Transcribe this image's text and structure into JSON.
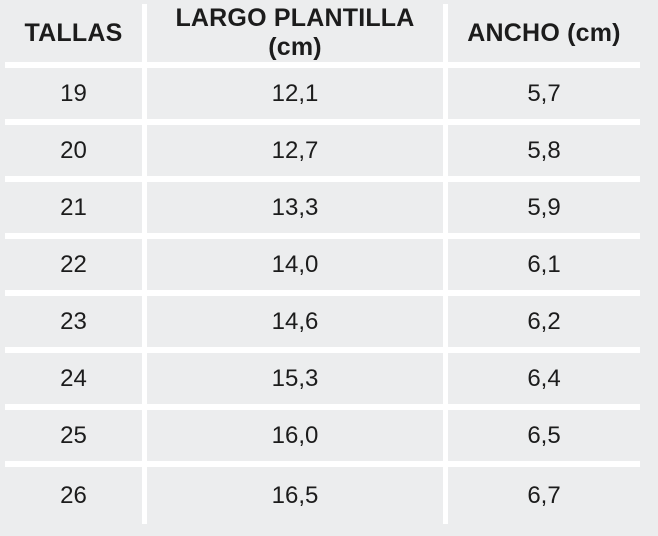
{
  "colors": {
    "background": "#ecedee",
    "divider": "#ffffff",
    "text": "#1c1c1c"
  },
  "table": {
    "headers": [
      "TALLAS",
      "LARGO PLANTILLA (cm)",
      "ANCHO (cm)"
    ],
    "rows": [
      [
        "19",
        "12,1",
        "5,7"
      ],
      [
        "20",
        "12,7",
        "5,8"
      ],
      [
        "21",
        "13,3",
        "5,9"
      ],
      [
        "22",
        "14,0",
        "6,1"
      ],
      [
        "23",
        "14,6",
        "6,2"
      ],
      [
        "24",
        "15,3",
        "6,4"
      ],
      [
        "25",
        "16,0",
        "6,5"
      ],
      [
        "26",
        "16,5",
        "6,7"
      ]
    ]
  },
  "chart_data": {
    "type": "table",
    "title": "",
    "columns": [
      "TALLAS",
      "LARGO PLANTILLA (cm)",
      "ANCHO (cm)"
    ],
    "rows": [
      [
        19,
        12.1,
        5.7
      ],
      [
        20,
        12.7,
        5.8
      ],
      [
        21,
        13.3,
        5.9
      ],
      [
        22,
        14.0,
        6.1
      ],
      [
        23,
        14.6,
        6.2
      ],
      [
        24,
        15.3,
        6.4
      ],
      [
        25,
        16.0,
        6.5
      ],
      [
        26,
        16.5,
        6.7
      ]
    ],
    "notes": "Shoe size chart: size (talla) vs insole length and width in cm, decimal comma display"
  }
}
